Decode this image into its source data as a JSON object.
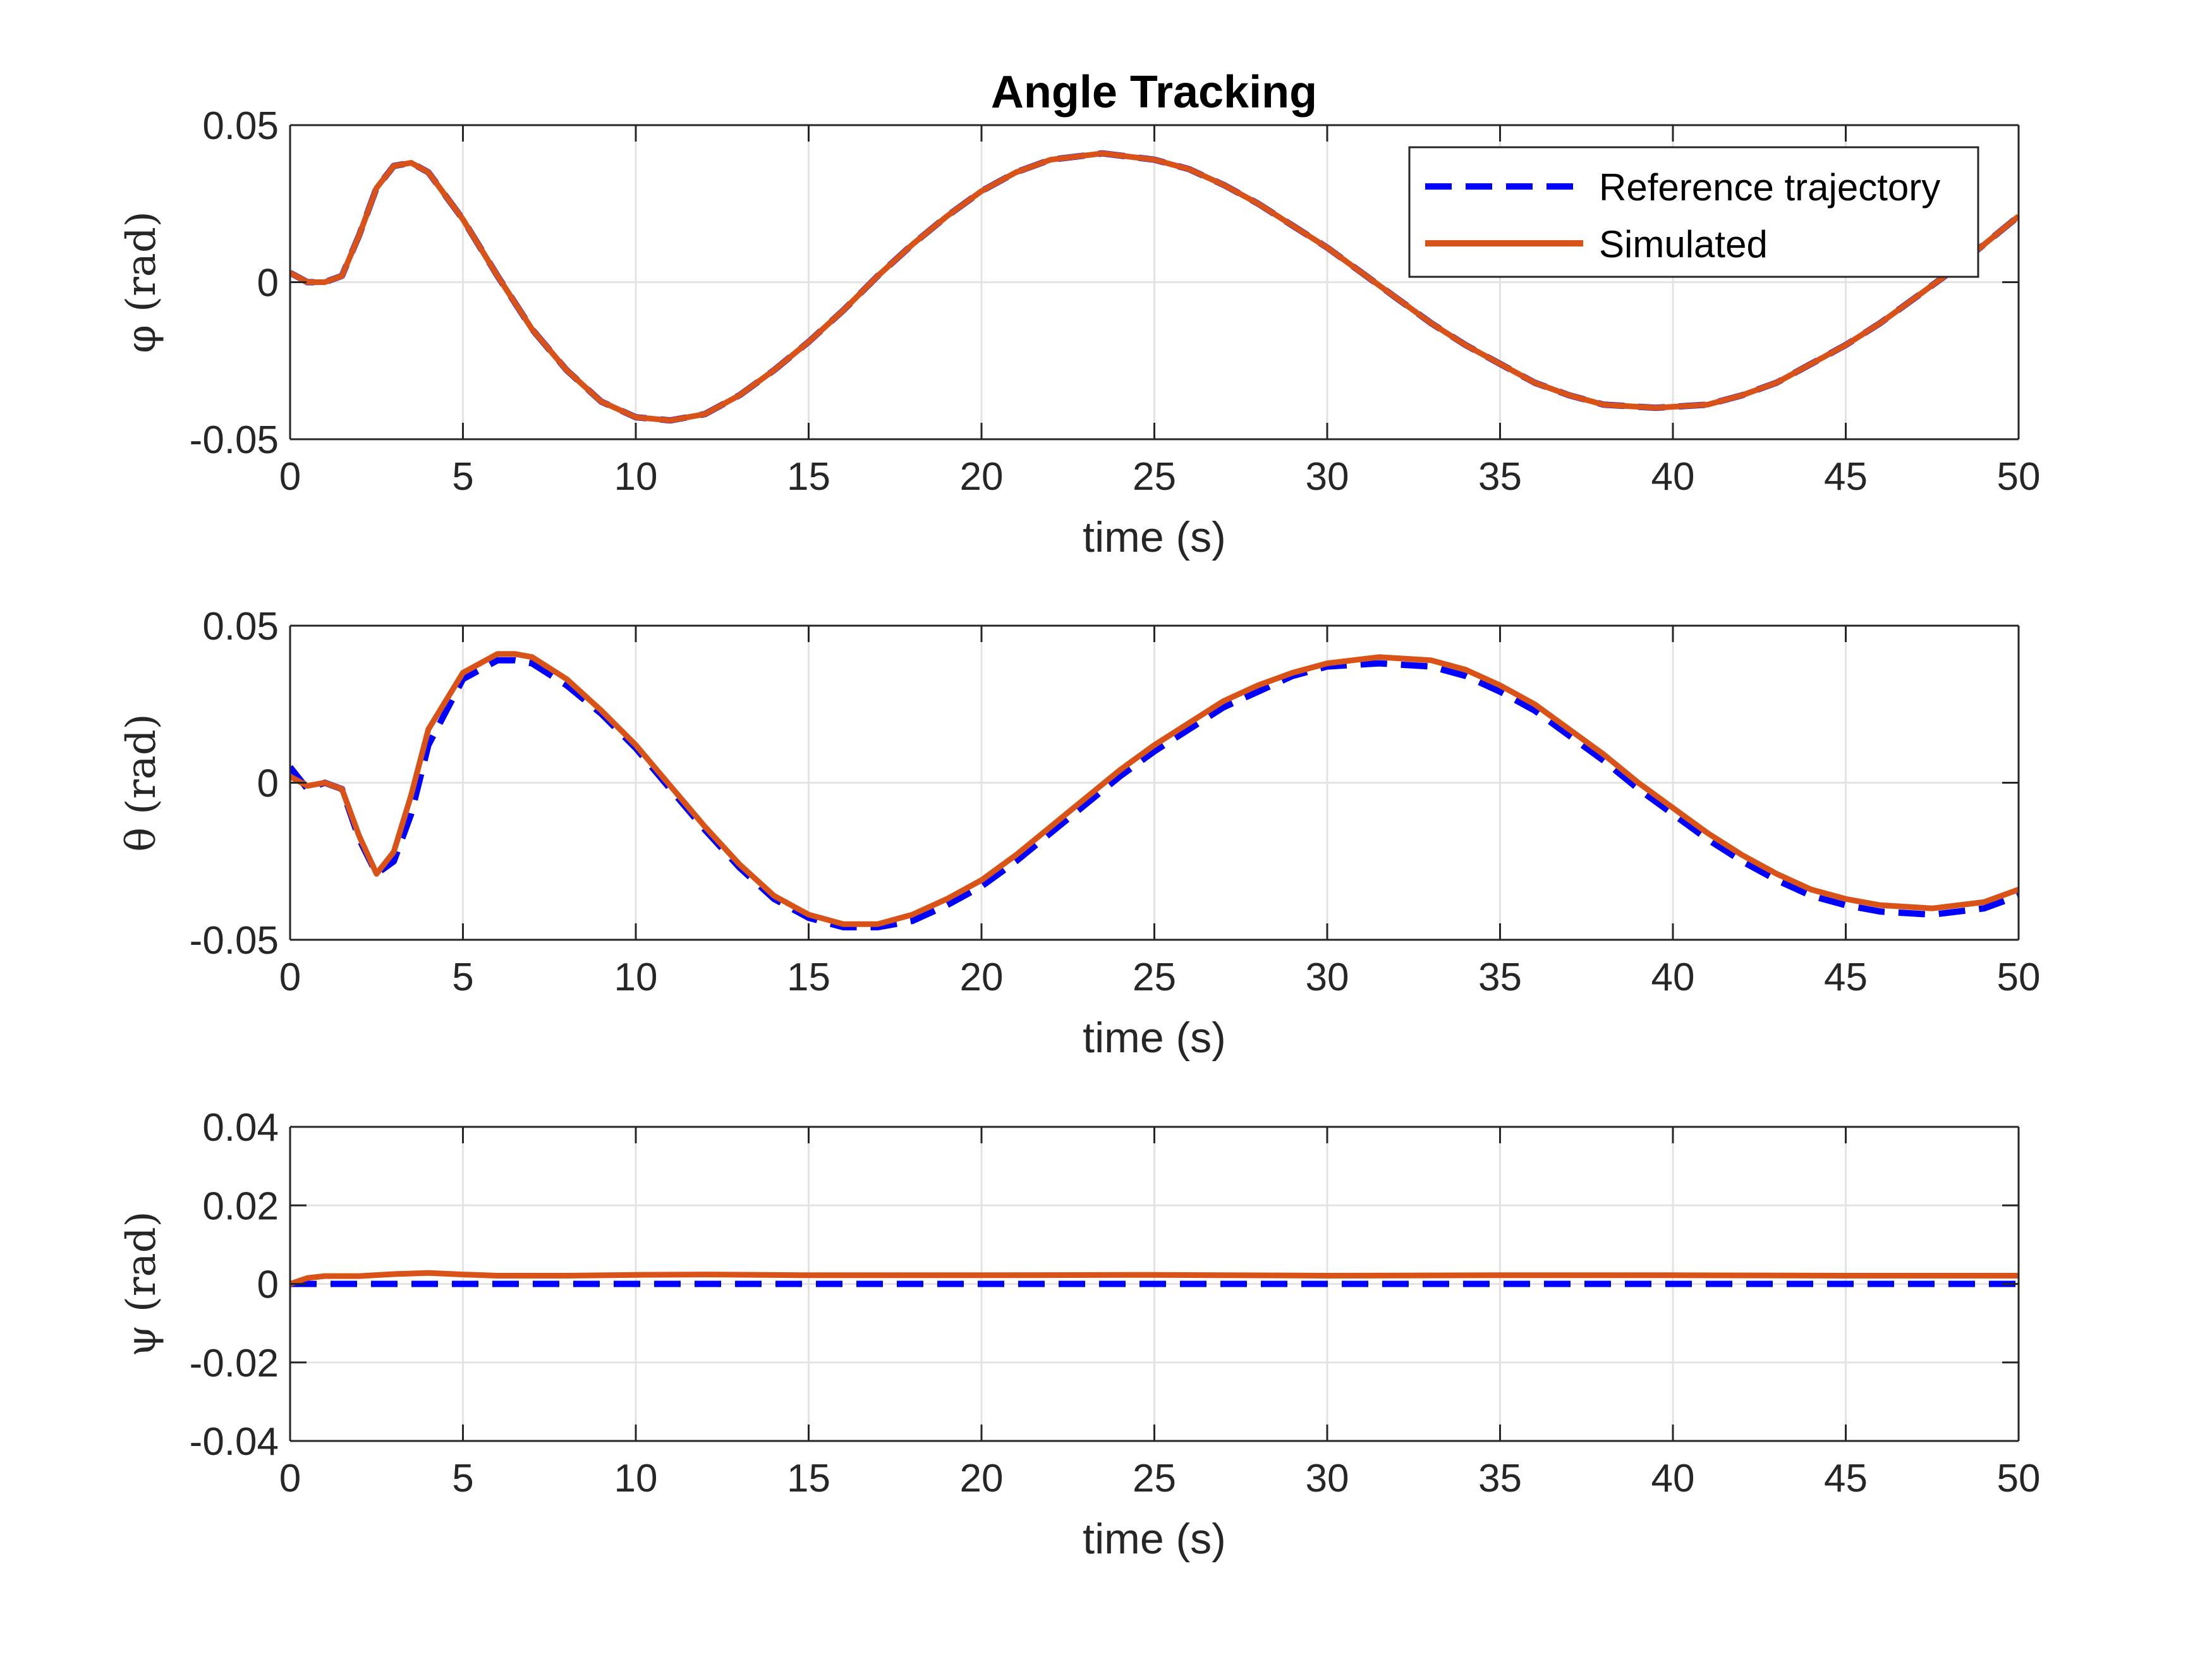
{
  "figure": {
    "title": "Angle Tracking",
    "legend": {
      "entries": [
        "Reference trajectory",
        "Simulated"
      ],
      "placement": "top-right"
    },
    "colors": {
      "reference": "#0000ff",
      "simulated": "#d95319",
      "grid": "#e3e3e3",
      "axis": "#262626"
    }
  },
  "chart_data": [
    {
      "type": "line",
      "title": "Angle Tracking",
      "xlabel": "time (s)",
      "ylabel": "φ (rad)",
      "xlim": [
        0,
        50
      ],
      "ylim": [
        -0.05,
        0.05
      ],
      "xticks": [
        "0",
        "5",
        "10",
        "15",
        "20",
        "25",
        "30",
        "35",
        "40",
        "45",
        "50"
      ],
      "yticks": [
        "-0.05",
        "0",
        "0.05"
      ],
      "grid": true,
      "x": [
        0,
        0.5,
        1,
        1.5,
        2,
        2.5,
        3,
        3.5,
        4,
        5,
        6,
        7,
        8,
        9,
        10,
        11,
        12,
        13,
        14,
        15,
        16,
        17,
        18,
        19,
        20,
        21,
        22,
        23.5,
        25,
        26,
        27,
        28,
        29,
        30,
        31,
        32,
        33,
        34,
        35,
        36,
        37,
        38,
        39.5,
        41,
        42,
        43,
        44,
        45,
        46,
        47,
        48,
        49,
        50
      ],
      "series": [
        {
          "name": "Reference trajectory",
          "style": "dashed",
          "values": [
            0.003,
            0.0,
            0.0,
            0.002,
            0.015,
            0.03,
            0.037,
            0.038,
            0.035,
            0.02,
            0.002,
            -0.015,
            -0.028,
            -0.038,
            -0.043,
            -0.044,
            -0.042,
            -0.036,
            -0.028,
            -0.019,
            -0.009,
            0.002,
            0.012,
            0.021,
            0.029,
            0.035,
            0.039,
            0.041,
            0.039,
            0.036,
            0.031,
            0.025,
            0.018,
            0.011,
            0.003,
            -0.005,
            -0.013,
            -0.02,
            -0.026,
            -0.032,
            -0.036,
            -0.039,
            -0.04,
            -0.039,
            -0.036,
            -0.032,
            -0.026,
            -0.02,
            -0.013,
            -0.005,
            0.003,
            0.012,
            0.021
          ]
        },
        {
          "name": "Simulated",
          "style": "solid",
          "values": [
            0.003,
            0.0,
            0.0,
            0.002,
            0.015,
            0.03,
            0.037,
            0.038,
            0.035,
            0.02,
            0.002,
            -0.015,
            -0.028,
            -0.038,
            -0.043,
            -0.044,
            -0.042,
            -0.036,
            -0.028,
            -0.019,
            -0.009,
            0.002,
            0.012,
            0.021,
            0.029,
            0.035,
            0.039,
            0.041,
            0.039,
            0.036,
            0.031,
            0.025,
            0.018,
            0.011,
            0.003,
            -0.005,
            -0.013,
            -0.02,
            -0.026,
            -0.032,
            -0.036,
            -0.039,
            -0.04,
            -0.039,
            -0.036,
            -0.032,
            -0.026,
            -0.02,
            -0.013,
            -0.005,
            0.003,
            0.012,
            0.021
          ]
        }
      ]
    },
    {
      "type": "line",
      "xlabel": "time (s)",
      "ylabel": "θ (rad)",
      "xlim": [
        0,
        50
      ],
      "ylim": [
        -0.05,
        0.05
      ],
      "xticks": [
        "0",
        "5",
        "10",
        "15",
        "20",
        "25",
        "30",
        "35",
        "40",
        "45",
        "50"
      ],
      "yticks": [
        "-0.05",
        "0",
        "0.05"
      ],
      "grid": true,
      "x": [
        0,
        0.5,
        1,
        1.5,
        2,
        2.5,
        3,
        3.5,
        4,
        5,
        6,
        6.5,
        7,
        8,
        9,
        10,
        11,
        12,
        13,
        14,
        15,
        16,
        16.5,
        17,
        18,
        19,
        20,
        21,
        22,
        23,
        24,
        25,
        26,
        27,
        28,
        29,
        30,
        31.5,
        33,
        34,
        35,
        36,
        37,
        38,
        39,
        40,
        41,
        42,
        43,
        44,
        45,
        46,
        47.5,
        49,
        50
      ],
      "series": [
        {
          "name": "Reference trajectory",
          "style": "dashed",
          "values": [
            0.005,
            -0.002,
            0.0,
            -0.002,
            -0.018,
            -0.029,
            -0.025,
            -0.01,
            0.012,
            0.033,
            0.039,
            0.039,
            0.038,
            0.031,
            0.022,
            0.011,
            -0.002,
            -0.015,
            -0.027,
            -0.037,
            -0.043,
            -0.046,
            -0.046,
            -0.046,
            -0.044,
            -0.039,
            -0.033,
            -0.025,
            -0.016,
            -0.007,
            0.002,
            0.01,
            0.017,
            0.024,
            0.029,
            0.034,
            0.037,
            0.038,
            0.037,
            0.034,
            0.029,
            0.023,
            0.015,
            0.007,
            -0.002,
            -0.01,
            -0.018,
            -0.025,
            -0.031,
            -0.036,
            -0.039,
            -0.041,
            -0.042,
            -0.04,
            -0.036
          ]
        },
        {
          "name": "Simulated",
          "style": "solid",
          "values": [
            0.002,
            -0.001,
            0.0,
            -0.002,
            -0.017,
            -0.029,
            -0.022,
            -0.004,
            0.017,
            0.035,
            0.041,
            0.041,
            0.04,
            0.033,
            0.023,
            0.012,
            -0.001,
            -0.014,
            -0.026,
            -0.036,
            -0.042,
            -0.045,
            -0.045,
            -0.045,
            -0.042,
            -0.037,
            -0.031,
            -0.023,
            -0.014,
            -0.005,
            0.004,
            0.012,
            0.019,
            0.026,
            0.031,
            0.035,
            0.038,
            0.04,
            0.039,
            0.036,
            0.031,
            0.025,
            0.017,
            0.009,
            0.0,
            -0.008,
            -0.016,
            -0.023,
            -0.029,
            -0.034,
            -0.037,
            -0.039,
            -0.04,
            -0.038,
            -0.034
          ]
        }
      ]
    },
    {
      "type": "line",
      "xlabel": "time (s)",
      "ylabel": "ψ (rad)",
      "xlim": [
        0,
        50
      ],
      "ylim": [
        -0.04,
        0.04
      ],
      "xticks": [
        "0",
        "5",
        "10",
        "15",
        "20",
        "25",
        "30",
        "35",
        "40",
        "45",
        "50"
      ],
      "yticks": [
        "-0.04",
        "-0.02",
        "0",
        "0.02",
        "0.04"
      ],
      "grid": true,
      "x": [
        0,
        0.5,
        1,
        2,
        3,
        4,
        5,
        6,
        8,
        10,
        12,
        15,
        20,
        25,
        30,
        35,
        40,
        45,
        50
      ],
      "series": [
        {
          "name": "Reference trajectory",
          "style": "dashed",
          "values": [
            0,
            0,
            0,
            0,
            0,
            0,
            0,
            0,
            0,
            0,
            0,
            0,
            0,
            0,
            0,
            0,
            0,
            0,
            0
          ]
        },
        {
          "name": "Simulated",
          "style": "solid",
          "values": [
            0.0,
            0.0015,
            0.002,
            0.002,
            0.0025,
            0.0028,
            0.0024,
            0.0021,
            0.0021,
            0.0023,
            0.0024,
            0.0022,
            0.0022,
            0.0023,
            0.0021,
            0.0022,
            0.0022,
            0.0021,
            0.0021
          ]
        }
      ]
    }
  ]
}
